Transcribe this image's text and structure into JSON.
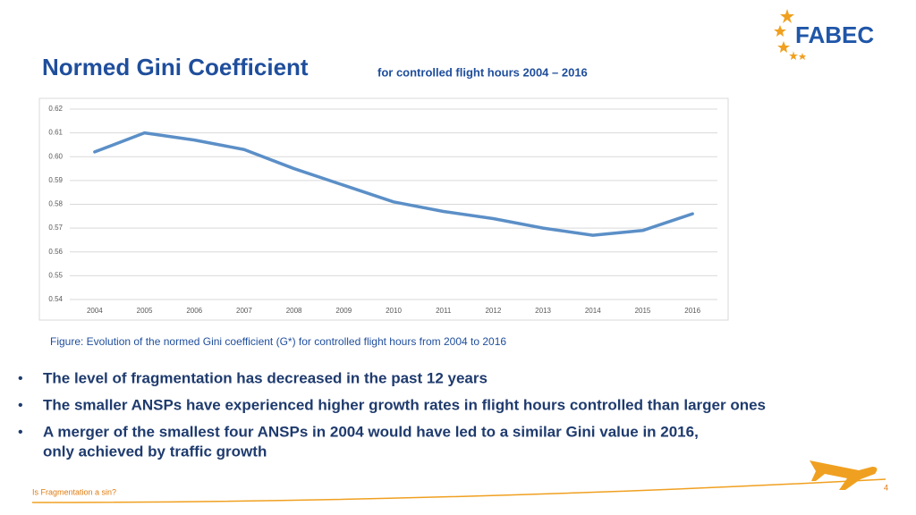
{
  "logo": "FABEC",
  "chart_data": {
    "type": "line",
    "title": "Normed Gini Coefficient",
    "subtitle": "for controlled flight hours 2004 – 2016",
    "caption": "Figure: Evolution of the normed Gini coefficient (G*) for controlled flight hours from 2004 to 2016",
    "categories": [
      "2004",
      "2005",
      "2006",
      "2007",
      "2008",
      "2009",
      "2010",
      "2011",
      "2012",
      "2013",
      "2014",
      "2015",
      "2016"
    ],
    "values": [
      0.602,
      0.61,
      0.607,
      0.603,
      0.595,
      0.588,
      0.581,
      0.577,
      0.574,
      0.57,
      0.567,
      0.569,
      0.576
    ],
    "color": "#5b8fc7",
    "ylim": [
      0.54,
      0.62
    ],
    "yticks": [
      0.54,
      0.55,
      0.56,
      0.57,
      0.58,
      0.59,
      {
        "value": 0.6,
        "label": "0.60"
      },
      0.61,
      0.62
    ],
    "grid": true
  },
  "bullets": [
    [
      "The level of fragmentation has decreased in the past 12 years"
    ],
    [
      "The smaller ANSPs have experienced higher growth rates in flight hours controlled than larger ones"
    ],
    [
      "A merger of the smallest four ANSPs in 2004 would have led to a similar Gini value in 2016,",
      "only achieved by traffic growth"
    ]
  ],
  "footer": "Is Fragmentation a sin?",
  "page_number": "4"
}
